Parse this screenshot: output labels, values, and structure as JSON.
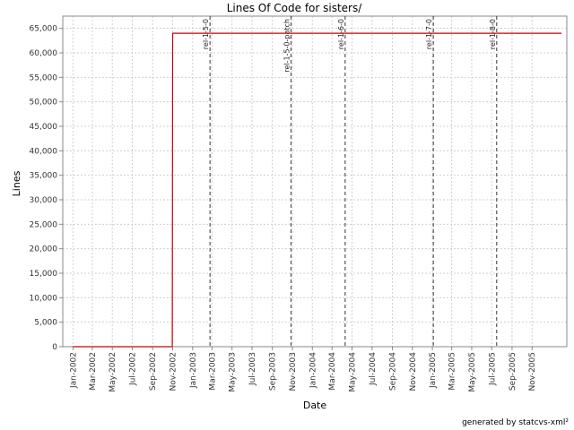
{
  "chart_data": {
    "type": "line",
    "title": "Lines Of Code for sisters/",
    "xlabel": "Date",
    "ylabel": "Lines",
    "footer": "generated by statcvs-xml²",
    "xlim": [
      "2001-12-01",
      "2006-02-15"
    ],
    "ylim": [
      0,
      67500
    ],
    "y_ticks": [
      0,
      5000,
      10000,
      15000,
      20000,
      25000,
      30000,
      35000,
      40000,
      45000,
      50000,
      55000,
      60000,
      65000
    ],
    "y_tick_labels": [
      "0",
      "5,000",
      "10,000",
      "15,000",
      "20,000",
      "25,000",
      "30,000",
      "35,000",
      "40,000",
      "45,000",
      "50,000",
      "55,000",
      "60,000",
      "65,000"
    ],
    "x_ticks": [
      "2002-01-01",
      "2002-03-01",
      "2002-05-01",
      "2002-07-01",
      "2002-09-01",
      "2002-11-01",
      "2003-01-01",
      "2003-03-01",
      "2003-05-01",
      "2003-07-01",
      "2003-09-01",
      "2003-11-01",
      "2004-01-01",
      "2004-03-01",
      "2004-05-01",
      "2004-07-01",
      "2004-09-01",
      "2004-11-01",
      "2005-01-01",
      "2005-03-01",
      "2005-05-01",
      "2005-07-01",
      "2005-09-01",
      "2005-11-01"
    ],
    "x_tick_labels": [
      "Jan-2002",
      "Mar-2002",
      "May-2002",
      "Jul-2002",
      "Sep-2002",
      "Nov-2002",
      "Jan-2003",
      "Mar-2003",
      "May-2003",
      "Jul-2003",
      "Sep-2003",
      "Nov-2003",
      "Jan-2004",
      "Mar-2004",
      "May-2004",
      "Jul-2004",
      "Sep-2004",
      "Nov-2004",
      "Jan-2005",
      "Mar-2005",
      "May-2005",
      "Jul-2005",
      "Sep-2005",
      "Nov-2005"
    ],
    "series": [
      {
        "color": "#cc0000",
        "points": [
          {
            "x": "2002-01-01",
            "y": 0
          },
          {
            "x": "2002-10-31",
            "y": 0
          },
          {
            "x": "2002-11-01",
            "y": 64000
          },
          {
            "x": "2006-01-30",
            "y": 64000
          }
        ]
      }
    ],
    "markers": [
      {
        "label": "rel-1-5-0",
        "x": "2003-02-23"
      },
      {
        "label": "rel-1-5-0-patch",
        "x": "2003-10-28"
      },
      {
        "label": "rel-1-6-0",
        "x": "2004-04-10"
      },
      {
        "label": "rel-1-7-0",
        "x": "2005-01-04"
      },
      {
        "label": "rel-1-8-0",
        "x": "2005-07-16"
      }
    ],
    "grid": true,
    "line_color": "#cc0000",
    "marker_color": "#555555",
    "grid_color": "#d0d0d0"
  }
}
